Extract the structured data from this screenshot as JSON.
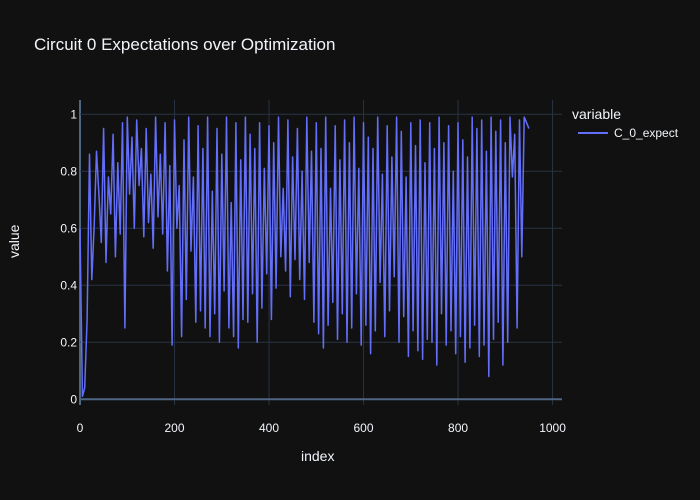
{
  "chart_data": {
    "type": "line",
    "title": "Circuit 0 Expectations over Optimization",
    "xlabel": "index",
    "ylabel": "value",
    "legend_title": "variable",
    "legend_position": "top-right",
    "grid": true,
    "xlim": [
      0,
      1020
    ],
    "ylim": [
      -0.02,
      1.05
    ],
    "x_ticks": [
      "0",
      "200",
      "400",
      "600",
      "800",
      "1000"
    ],
    "y_ticks": [
      "0",
      "0.2",
      "0.4",
      "0.6",
      "0.8",
      "1"
    ],
    "series": [
      {
        "name": "C_0_expect",
        "color": "#636efa",
        "x_start": 0,
        "x_step": 5,
        "values": [
          0.6,
          0.01,
          0.04,
          0.28,
          0.86,
          0.42,
          0.61,
          0.87,
          0.72,
          0.55,
          0.95,
          0.48,
          0.78,
          0.65,
          0.93,
          0.5,
          0.83,
          0.58,
          0.97,
          0.25,
          0.99,
          0.72,
          0.92,
          0.6,
          0.98,
          0.75,
          0.88,
          0.57,
          0.95,
          0.62,
          0.79,
          0.53,
          0.99,
          0.64,
          0.86,
          0.58,
          0.97,
          0.45,
          0.82,
          0.19,
          0.98,
          0.6,
          0.75,
          0.22,
          0.91,
          0.35,
          0.99,
          0.52,
          0.78,
          0.27,
          0.96,
          0.31,
          0.88,
          0.25,
          0.99,
          0.22,
          0.73,
          0.3,
          0.95,
          0.2,
          0.86,
          0.38,
          0.99,
          0.25,
          0.69,
          0.22,
          0.97,
          0.18,
          0.84,
          0.28,
          0.99,
          0.27,
          0.93,
          0.37,
          0.88,
          0.2,
          0.97,
          0.32,
          0.81,
          0.44,
          0.96,
          0.28,
          0.9,
          0.39,
          0.99,
          0.5,
          0.74,
          0.45,
          0.98,
          0.36,
          0.85,
          0.49,
          0.95,
          0.42,
          0.8,
          0.35,
          0.99,
          0.48,
          0.87,
          0.27,
          0.97,
          0.23,
          0.88,
          0.18,
          0.99,
          0.26,
          0.74,
          0.34,
          0.96,
          0.21,
          0.84,
          0.3,
          0.98,
          0.2,
          0.9,
          0.25,
          0.99,
          0.37,
          0.81,
          0.19,
          0.97,
          0.26,
          0.92,
          0.16,
          0.88,
          0.24,
          0.99,
          0.41,
          0.79,
          0.22,
          0.96,
          0.31,
          0.85,
          0.43,
          0.99,
          0.2,
          0.94,
          0.29,
          0.78,
          0.15,
          0.97,
          0.24,
          0.89,
          0.17,
          0.98,
          0.14,
          0.83,
          0.21,
          0.97,
          0.2,
          0.88,
          0.12,
          0.99,
          0.3,
          0.9,
          0.19,
          0.96,
          0.24,
          0.8,
          0.16,
          0.97,
          0.22,
          0.91,
          0.13,
          0.85,
          0.18,
          0.99,
          0.26,
          0.95,
          0.15,
          0.98,
          0.19,
          0.87,
          0.08,
          0.99,
          0.21,
          0.94,
          0.27,
          0.98,
          0.12,
          0.9,
          0.2,
          0.99,
          0.78,
          0.93,
          0.25,
          0.98,
          0.5,
          0.99,
          0.97,
          0.95
        ]
      }
    ]
  }
}
